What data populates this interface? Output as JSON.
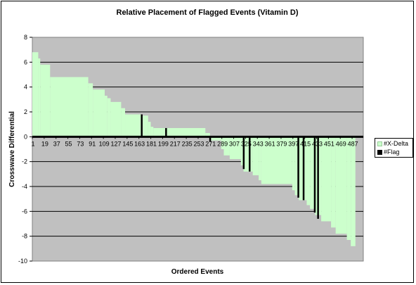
{
  "chart_data": {
    "type": "bar",
    "title": "Relative Placement of Flagged Events (Vitamin D)",
    "xlabel": "Ordered Events",
    "ylabel": "Crosswave Differential",
    "ylim": [
      -10,
      8
    ],
    "yticks": [
      8,
      6,
      4,
      2,
      0,
      -2,
      -4,
      -6,
      -8,
      -10
    ],
    "xlim": [
      1,
      504
    ],
    "xticks": [
      "1",
      "19",
      "37",
      "55",
      "73",
      "91",
      "109",
      "127",
      "145",
      "163",
      "181",
      "199",
      "217",
      "235",
      "253",
      "271",
      "289",
      "307",
      "325",
      "343",
      "361",
      "379",
      "397",
      "415",
      "433",
      "451",
      "469",
      "487"
    ],
    "grid": true,
    "legend_position": "right",
    "colors": {
      "plot_background": "#c0c0c0",
      "delta": "#ccffcc",
      "flag": "#000000",
      "grid": "#000000"
    },
    "series": [
      {
        "name": "#X-Delta",
        "type": "area-step",
        "steps": [
          {
            "x_start": 1,
            "x_end": 10,
            "value": 6.8
          },
          {
            "x_start": 10,
            "x_end": 13,
            "value": 6.3
          },
          {
            "x_start": 13,
            "x_end": 28,
            "value": 5.8
          },
          {
            "x_start": 28,
            "x_end": 86,
            "value": 4.8
          },
          {
            "x_start": 86,
            "x_end": 93,
            "value": 4.3
          },
          {
            "x_start": 93,
            "x_end": 111,
            "value": 3.8
          },
          {
            "x_start": 111,
            "x_end": 115,
            "value": 3.3
          },
          {
            "x_start": 115,
            "x_end": 120,
            "value": 3.1
          },
          {
            "x_start": 120,
            "x_end": 136,
            "value": 2.8
          },
          {
            "x_start": 136,
            "x_end": 142,
            "value": 2.3
          },
          {
            "x_start": 142,
            "x_end": 166,
            "value": 1.8
          },
          {
            "x_start": 166,
            "x_end": 177,
            "value": 1.7
          },
          {
            "x_start": 177,
            "x_end": 181,
            "value": 1.2
          },
          {
            "x_start": 181,
            "x_end": 185,
            "value": 0.8
          },
          {
            "x_start": 185,
            "x_end": 264,
            "value": 0.7
          },
          {
            "x_start": 264,
            "x_end": 271,
            "value": 0.3
          },
          {
            "x_start": 271,
            "x_end": 288,
            "value": -0.3
          },
          {
            "x_start": 288,
            "x_end": 292,
            "value": -1.0
          },
          {
            "x_start": 292,
            "x_end": 301,
            "value": -1.5
          },
          {
            "x_start": 301,
            "x_end": 318,
            "value": -1.8
          },
          {
            "x_start": 318,
            "x_end": 322,
            "value": -2.3
          },
          {
            "x_start": 322,
            "x_end": 336,
            "value": -2.8
          },
          {
            "x_start": 336,
            "x_end": 345,
            "value": -3.1
          },
          {
            "x_start": 345,
            "x_end": 349,
            "value": -3.5
          },
          {
            "x_start": 349,
            "x_end": 396,
            "value": -3.8
          },
          {
            "x_start": 396,
            "x_end": 400,
            "value": -4.3
          },
          {
            "x_start": 400,
            "x_end": 406,
            "value": -4.7
          },
          {
            "x_start": 406,
            "x_end": 418,
            "value": -5.1
          },
          {
            "x_start": 418,
            "x_end": 423,
            "value": -5.5
          },
          {
            "x_start": 423,
            "x_end": 431,
            "value": -5.8
          },
          {
            "x_start": 431,
            "x_end": 440,
            "value": -6.3
          },
          {
            "x_start": 440,
            "x_end": 455,
            "value": -6.8
          },
          {
            "x_start": 455,
            "x_end": 462,
            "value": -7.3
          },
          {
            "x_start": 462,
            "x_end": 479,
            "value": -7.8
          },
          {
            "x_start": 479,
            "x_end": 485,
            "value": -8.3
          },
          {
            "x_start": 485,
            "x_end": 492,
            "value": -8.8
          }
        ]
      },
      {
        "name": "#Flag",
        "type": "bar",
        "x": [
          167,
          204,
          271,
          322,
          331,
          405,
          413,
          430,
          435
        ],
        "values": [
          1.8,
          0.7,
          -0.4,
          -2.6,
          -2.8,
          -4.9,
          -5.1,
          -6.1,
          -6.6
        ]
      }
    ]
  }
}
